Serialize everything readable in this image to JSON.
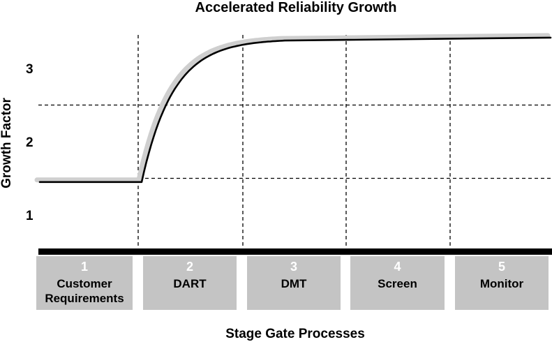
{
  "chart_data": {
    "type": "line",
    "title": "Accelerated Reliability Growth",
    "ylabel": "Growth Factor",
    "xlabel": "Stage Gate Processes",
    "yticks": [
      1,
      2,
      3
    ],
    "ylim": [
      0.5,
      3.55
    ],
    "grid_y": [
      1.5,
      2.5
    ],
    "stages": [
      {
        "number": "1",
        "label_lines": [
          "Customer",
          "Requirements"
        ]
      },
      {
        "number": "2",
        "label_lines": [
          "DART"
        ]
      },
      {
        "number": "3",
        "label_lines": [
          "DMT"
        ]
      },
      {
        "number": "4",
        "label_lines": [
          "Screen"
        ]
      },
      {
        "number": "5",
        "label_lines": [
          "Monitor"
        ]
      }
    ],
    "curve": {
      "baseline": 1.45,
      "plateau": 3.38,
      "end_value": 3.42,
      "description": "Flat at baseline through stage 1, rapid rise during stage 2 (DART), leveling off in stage 3 and gently continuing upward through Monitor"
    },
    "colors": {
      "curve": "#000000",
      "curve_shadow": "#cfcfcf",
      "stage_box": "#c4c4c4",
      "baseline_bar": "#000000",
      "grid": "#000000"
    }
  }
}
